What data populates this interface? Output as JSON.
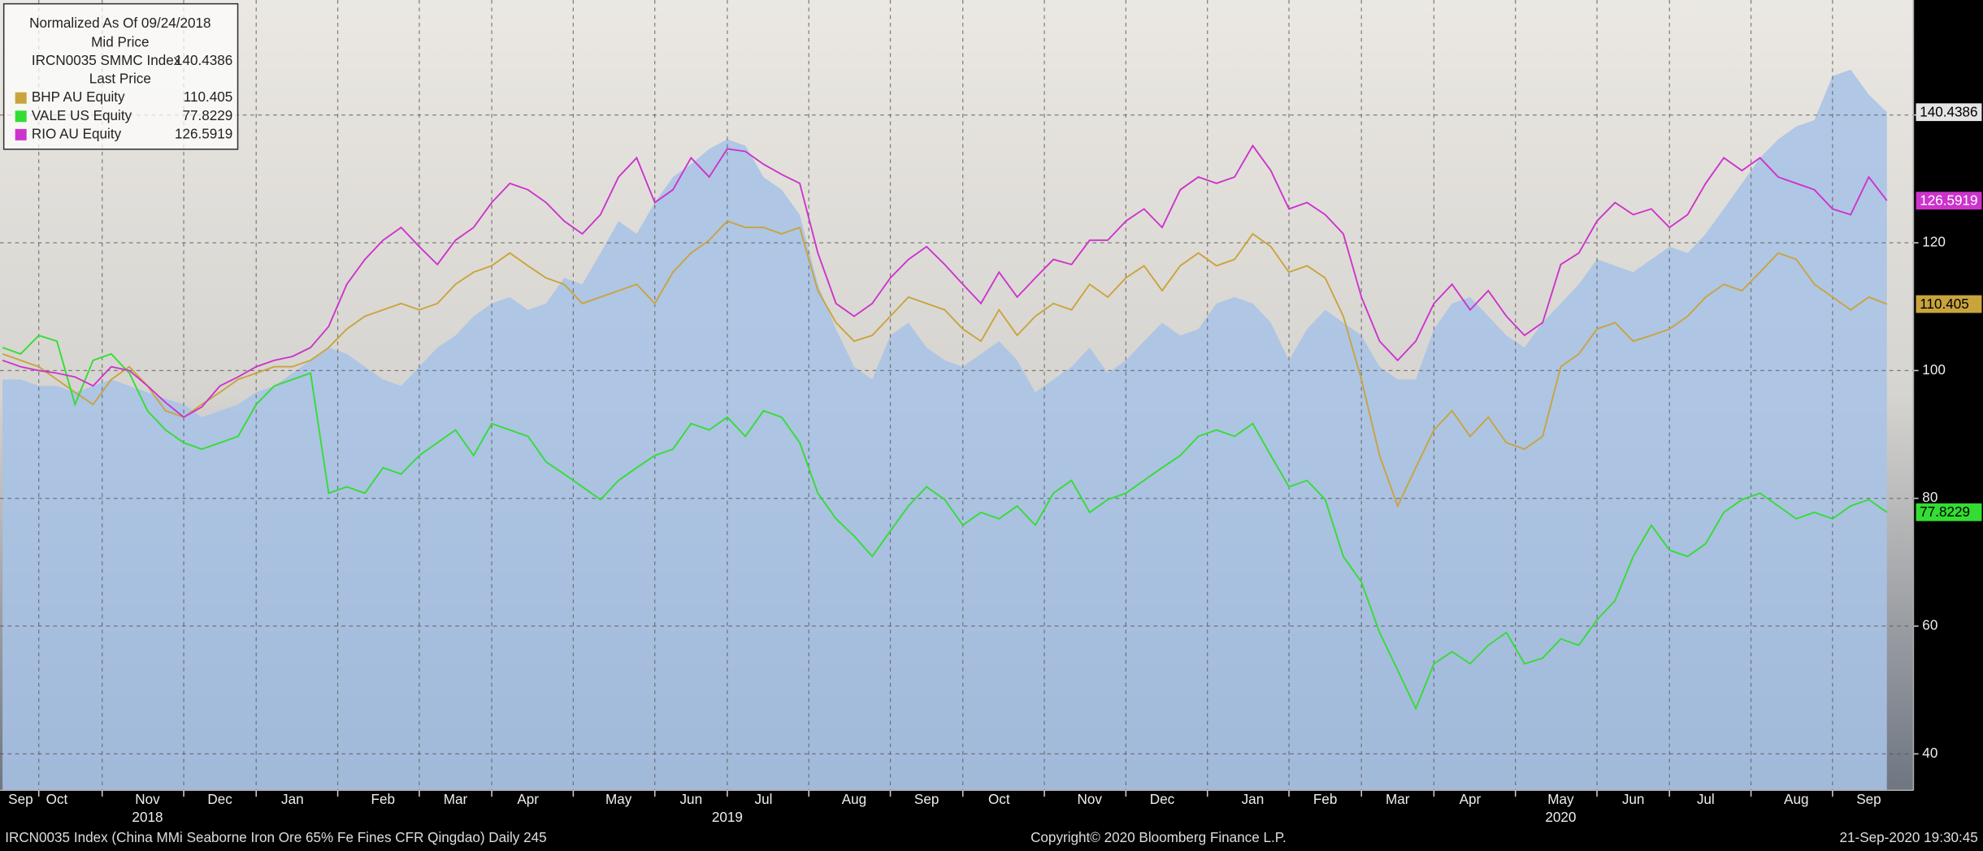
{
  "chart_data": {
    "type": "line",
    "title": "Normalized As Of 09/24/2018",
    "price_labels": {
      "mid": "Mid Price",
      "last": "Last Price"
    },
    "categories": [
      null,
      "Sep",
      null,
      "Oct",
      null,
      null,
      null,
      null,
      "Nov",
      null,
      null,
      null,
      "Dec",
      null,
      null,
      null,
      "Jan",
      null,
      null,
      null,
      null,
      "Feb",
      null,
      null,
      null,
      "Mar",
      null,
      null,
      null,
      "Apr",
      null,
      null,
      null,
      null,
      "May",
      null,
      null,
      null,
      "Jun",
      null,
      null,
      null,
      "Jul",
      null,
      null,
      null,
      null,
      "Aug",
      null,
      null,
      null,
      "Sep",
      null,
      null,
      null,
      "Oct",
      null,
      null,
      null,
      null,
      "Nov",
      null,
      null,
      null,
      "Dec",
      null,
      null,
      null,
      null,
      "Jan",
      null,
      null,
      null,
      "Feb",
      null,
      null,
      null,
      "Mar",
      null,
      null,
      null,
      "Apr",
      null,
      null,
      null,
      null,
      "May",
      null,
      null,
      null,
      "Jun",
      null,
      null,
      null,
      "Jul",
      null,
      null,
      null,
      null,
      "Aug",
      null,
      null,
      null,
      "Sep",
      null
    ],
    "year_categories": [
      null,
      null,
      null,
      null,
      null,
      null,
      null,
      null,
      "2018",
      null,
      null,
      null,
      null,
      null,
      null,
      null,
      null,
      null,
      null,
      null,
      null,
      null,
      null,
      null,
      null,
      null,
      null,
      null,
      null,
      null,
      null,
      null,
      null,
      null,
      null,
      null,
      null,
      null,
      null,
      null,
      "2019",
      null,
      null,
      null,
      null,
      null,
      null,
      null,
      null,
      null,
      null,
      null,
      null,
      null,
      null,
      null,
      null,
      null,
      null,
      null,
      null,
      null,
      null,
      null,
      null,
      null,
      null,
      null,
      null,
      null,
      null,
      null,
      null,
      null,
      null,
      null,
      null,
      null,
      null,
      null,
      null,
      null,
      null,
      null,
      null,
      null,
      "2020",
      null,
      null,
      null,
      null,
      null,
      null,
      null,
      null,
      null,
      null,
      null,
      null,
      null,
      null,
      null,
      null,
      null,
      null
    ],
    "ylim": [
      34.3,
      158
    ],
    "yticks": [
      40,
      60,
      80,
      100,
      120,
      140
    ],
    "grid": true,
    "series": [
      {
        "name": "IRCN0035 SMMC Index",
        "price": "mid",
        "style": "area",
        "color": "#a9c3e6",
        "tag_color": "#e4e4e4",
        "tag_text_color": "#000000",
        "values": [
          98.6,
          98.6,
          97.6,
          97.6,
          96.6,
          97.6,
          98.6,
          97.6,
          96.6,
          95.6,
          94.7,
          92.7,
          93.7,
          94.7,
          96.6,
          97.6,
          99.6,
          101.6,
          103.6,
          102.6,
          100.6,
          98.6,
          97.6,
          100.6,
          103.6,
          105.5,
          108.5,
          110.5,
          111.5,
          109.5,
          110.5,
          114.5,
          113.5,
          118.4,
          123.4,
          121.4,
          126.3,
          130.3,
          132.3,
          134.7,
          136.2,
          135.2,
          130.3,
          128.3,
          124.4,
          113.5,
          106.5,
          100.6,
          98.6,
          105.5,
          107.5,
          103.6,
          101.6,
          100.6,
          102.6,
          104.6,
          101.6,
          96.6,
          98.6,
          100.6,
          103.6,
          99.6,
          101.6,
          104.6,
          107.5,
          105.5,
          106.5,
          110.5,
          111.5,
          110.5,
          107.5,
          101.6,
          106.5,
          109.5,
          107.5,
          105.5,
          100.6,
          98.6,
          98.6,
          106.5,
          110.5,
          111.5,
          108.5,
          105.5,
          103.6,
          107.5,
          110.5,
          113.5,
          117.4,
          116.4,
          115.4,
          117.4,
          119.4,
          118.4,
          121.4,
          125.3,
          129.3,
          133.3,
          136.2,
          138.2,
          139.2,
          146.1,
          147.1,
          143.2,
          140.4386
        ]
      },
      {
        "name": "BHP AU Equity",
        "price": "last",
        "style": "line",
        "color": "#c9a43c",
        "tag_color": "#c9a43c",
        "tag_text_color": "#000000",
        "values": [
          102.6,
          101.6,
          100.6,
          98.6,
          96.6,
          94.7,
          98.6,
          100.6,
          97.6,
          93.7,
          92.7,
          94.7,
          96.6,
          98.6,
          99.6,
          100.6,
          100.6,
          101.6,
          103.6,
          106.5,
          108.5,
          109.5,
          110.5,
          109.5,
          110.5,
          113.5,
          115.4,
          116.4,
          118.4,
          116.4,
          114.5,
          113.5,
          110.5,
          111.5,
          112.5,
          113.5,
          110.5,
          115.4,
          118.4,
          120.4,
          123.4,
          122.4,
          122.4,
          121.4,
          122.4,
          112.5,
          107.5,
          104.6,
          105.5,
          108.5,
          111.5,
          110.5,
          109.5,
          106.5,
          104.6,
          109.5,
          105.5,
          108.5,
          110.5,
          109.5,
          113.5,
          111.5,
          114.5,
          116.4,
          112.5,
          116.4,
          118.4,
          116.4,
          117.4,
          121.4,
          119.4,
          115.4,
          116.4,
          114.5,
          108.5,
          98.6,
          86.7,
          78.8,
          84.8,
          90.7,
          93.7,
          89.7,
          92.7,
          88.7,
          87.7,
          89.7,
          100.6,
          102.6,
          106.5,
          107.5,
          104.6,
          105.5,
          106.5,
          108.5,
          111.5,
          113.5,
          112.5,
          115.4,
          118.4,
          117.4,
          113.5,
          111.5,
          109.5,
          111.5,
          110.405
        ]
      },
      {
        "name": "VALE US Equity",
        "price": "last",
        "style": "line",
        "color": "#33dd33",
        "tag_color": "#33dd33",
        "tag_text_color": "#000000",
        "values": [
          103.6,
          102.6,
          105.5,
          104.6,
          94.7,
          101.6,
          102.6,
          99.6,
          93.7,
          90.7,
          88.7,
          87.7,
          88.7,
          89.7,
          94.7,
          97.6,
          98.6,
          99.6,
          80.8,
          81.8,
          80.8,
          84.8,
          83.8,
          86.7,
          88.7,
          90.7,
          86.7,
          91.7,
          90.7,
          89.7,
          85.7,
          83.8,
          81.8,
          79.8,
          82.8,
          84.8,
          86.7,
          87.7,
          91.7,
          90.7,
          92.7,
          89.7,
          93.7,
          92.7,
          88.7,
          80.8,
          76.8,
          74.1,
          70.9,
          74.9,
          78.8,
          81.8,
          79.8,
          75.8,
          77.8,
          76.8,
          78.8,
          75.8,
          80.8,
          82.8,
          77.8,
          79.8,
          80.8,
          82.8,
          84.8,
          86.7,
          89.7,
          90.7,
          89.7,
          91.7,
          86.7,
          81.8,
          82.8,
          79.8,
          70.9,
          66.9,
          59.0,
          53.1,
          47.1,
          54.1,
          56.0,
          54.1,
          57.0,
          59.0,
          54.1,
          55.0,
          58.0,
          57.0,
          61.0,
          64.0,
          70.9,
          75.8,
          71.9,
          70.9,
          72.9,
          77.8,
          79.8,
          80.8,
          78.8,
          76.8,
          77.8,
          76.8,
          78.8,
          79.8,
          77.8229
        ]
      },
      {
        "name": "RIO AU Equity",
        "price": "last",
        "style": "line",
        "color": "#cc33cc",
        "tag_color": "#cc33cc",
        "tag_text_color": "#ffffff",
        "values": [
          101.6,
          100.6,
          100,
          99.6,
          99,
          97.6,
          100.6,
          100,
          97.6,
          95,
          92.7,
          94.3,
          97.6,
          99,
          100.6,
          101.6,
          102.2,
          103.6,
          106.9,
          113.5,
          117.4,
          120.4,
          122.4,
          119.4,
          116.6,
          120.4,
          122.4,
          126.3,
          129.3,
          128.3,
          126.3,
          123.4,
          121.4,
          124.4,
          130.3,
          133.3,
          126.3,
          128.3,
          133.3,
          130.3,
          134.7,
          134.3,
          132.3,
          130.7,
          129.3,
          118.4,
          110.5,
          108.5,
          110.5,
          114.5,
          117.4,
          119.4,
          116.6,
          113.5,
          110.5,
          115.4,
          111.5,
          114.5,
          117.4,
          116.6,
          120.4,
          120.4,
          123.4,
          125.3,
          122.4,
          128.3,
          130.3,
          129.3,
          130.3,
          135.2,
          131.3,
          125.3,
          126.3,
          124.4,
          121.4,
          111.5,
          104.6,
          101.6,
          104.6,
          110.5,
          113.5,
          109.5,
          112.5,
          108.5,
          105.5,
          107.5,
          116.6,
          118.4,
          123.4,
          126.3,
          124.4,
          125.3,
          122.4,
          124.4,
          129.3,
          133.3,
          131.3,
          133.3,
          130.3,
          129.3,
          128.3,
          125.3,
          124.4,
          130.3,
          126.5919
        ]
      }
    ],
    "footer_left": "IRCN0035 Index (China MMi Seaborne Iron Ore 65% Fe Fines CFR Qingdao)  Daily 245",
    "footer_center": "Copyright© 2020 Bloomberg Finance L.P.",
    "footer_right": "21-Sep-2020 19:30:45"
  }
}
